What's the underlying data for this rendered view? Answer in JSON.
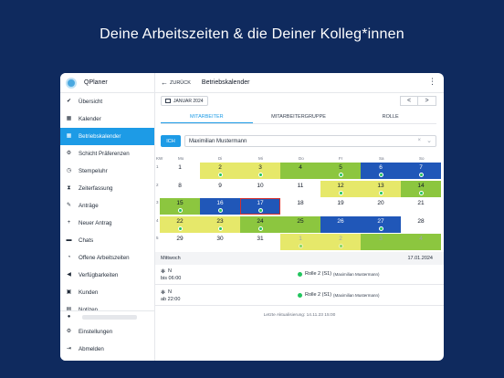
{
  "headline": "Deine Arbeitszeiten & die Deiner Kolleg*innen",
  "app": {
    "name": "QPlaner",
    "brand_color": "#1d9be6"
  },
  "sidebar": {
    "items": [
      {
        "label": "Übersicht",
        "icon": "check-circle-icon"
      },
      {
        "label": "Kalender",
        "icon": "calendar-icon"
      },
      {
        "label": "Betriebskalender",
        "icon": "calendar-grid-icon",
        "active": true
      },
      {
        "label": "Schicht Präferenzen",
        "icon": "gear-icon"
      },
      {
        "label": "Stempeluhr",
        "icon": "clock-icon"
      },
      {
        "label": "Zeiterfassung",
        "icon": "hourglass-icon"
      },
      {
        "label": "Anträge",
        "icon": "pen-icon"
      },
      {
        "label": "Neuer Antrag",
        "icon": "plus-icon"
      },
      {
        "label": "Chats",
        "icon": "chat-icon"
      },
      {
        "label": "Offene Arbeitszeiten",
        "icon": "open-times-icon"
      },
      {
        "label": "Verfügbarkeiten",
        "icon": "megaphone-icon"
      },
      {
        "label": "Kunden",
        "icon": "customers-icon"
      },
      {
        "label": "Notizen",
        "icon": "notes-icon"
      }
    ],
    "footer": [
      {
        "label": "Einstellungen",
        "icon": "settings-icon"
      },
      {
        "label": "Abmelden",
        "icon": "logout-icon"
      }
    ]
  },
  "header": {
    "back_label": "ZURÜCK",
    "title": "Betriebskalender"
  },
  "month": {
    "label": "JANUAR 2024",
    "prev": "<",
    "next": ">"
  },
  "tabs": [
    {
      "label": "MITARBEITER",
      "active": true
    },
    {
      "label": "MITARBEITERGRUPPE"
    },
    {
      "label": "ROLLE"
    }
  ],
  "filter": {
    "button": "ICH",
    "selected": "Maximilian Mustermann",
    "clear": "×",
    "chevron": "⌄"
  },
  "calendar": {
    "kw_label": "KW",
    "weekdays": [
      "Mo",
      "Di",
      "Mi",
      "Do",
      "Fr",
      "Sa",
      "So"
    ],
    "weeks": [
      {
        "kw": "1",
        "days": [
          {
            "d": "1",
            "c": ""
          },
          {
            "d": "2",
            "c": "yellow",
            "dot": true
          },
          {
            "d": "3",
            "c": "yellow",
            "dot": true
          },
          {
            "d": "4",
            "c": "green"
          },
          {
            "d": "5",
            "c": "green",
            "dot": true
          },
          {
            "d": "6",
            "c": "blue",
            "dot": true
          },
          {
            "d": "7",
            "c": "blue",
            "dot": true
          }
        ]
      },
      {
        "kw": "2",
        "days": [
          {
            "d": "8",
            "c": ""
          },
          {
            "d": "9",
            "c": ""
          },
          {
            "d": "10",
            "c": ""
          },
          {
            "d": "11",
            "c": ""
          },
          {
            "d": "12",
            "c": "yellow",
            "dot": true
          },
          {
            "d": "13",
            "c": "yellow",
            "dot": true
          },
          {
            "d": "14",
            "c": "green",
            "dot": true
          }
        ]
      },
      {
        "kw": "3",
        "days": [
          {
            "d": "15",
            "c": "green",
            "dot": true
          },
          {
            "d": "16",
            "c": "blue",
            "dot": true
          },
          {
            "d": "17",
            "c": "blue",
            "dot": true,
            "today": true
          },
          {
            "d": "18",
            "c": ""
          },
          {
            "d": "19",
            "c": ""
          },
          {
            "d": "20",
            "c": ""
          },
          {
            "d": "21",
            "c": ""
          }
        ]
      },
      {
        "kw": "4",
        "days": [
          {
            "d": "22",
            "c": "yellow",
            "dot": true
          },
          {
            "d": "23",
            "c": "yellow",
            "dot": true
          },
          {
            "d": "24",
            "c": "green",
            "dot": true
          },
          {
            "d": "25",
            "c": "green"
          },
          {
            "d": "26",
            "c": "blue"
          },
          {
            "d": "27",
            "c": "blue",
            "dot": true
          },
          {
            "d": "28",
            "c": ""
          }
        ]
      },
      {
        "kw": "5",
        "days": [
          {
            "d": "29",
            "c": ""
          },
          {
            "d": "30",
            "c": ""
          },
          {
            "d": "31",
            "c": ""
          },
          {
            "d": "1",
            "c": "yellow",
            "dot": true,
            "faded": true
          },
          {
            "d": "2",
            "c": "yellow",
            "dot": true,
            "faded": true
          },
          {
            "d": "3",
            "c": "green",
            "faded": true
          },
          {
            "d": "4",
            "c": "green",
            "faded": true
          }
        ]
      }
    ],
    "colors": {
      "yellow": "#e6e86a",
      "green": "#8cc63f",
      "blue": "#2057b8",
      "today_border": "#d32f2f"
    }
  },
  "detail": {
    "day_label": "Mittwoch",
    "date": "17.01.2024",
    "shifts": [
      {
        "code": "N",
        "time": "bis 06:00",
        "role": "Rolle 2 (S1)",
        "person": "(Maximilian Mustermann)"
      },
      {
        "code": "N",
        "time": "ab 22:00",
        "role": "Rolle 2 (S1)",
        "person": "(Maximilian Mustermann)"
      }
    ],
    "updated": "Letzte Aktualisierung: 14.11.23 15:00"
  }
}
